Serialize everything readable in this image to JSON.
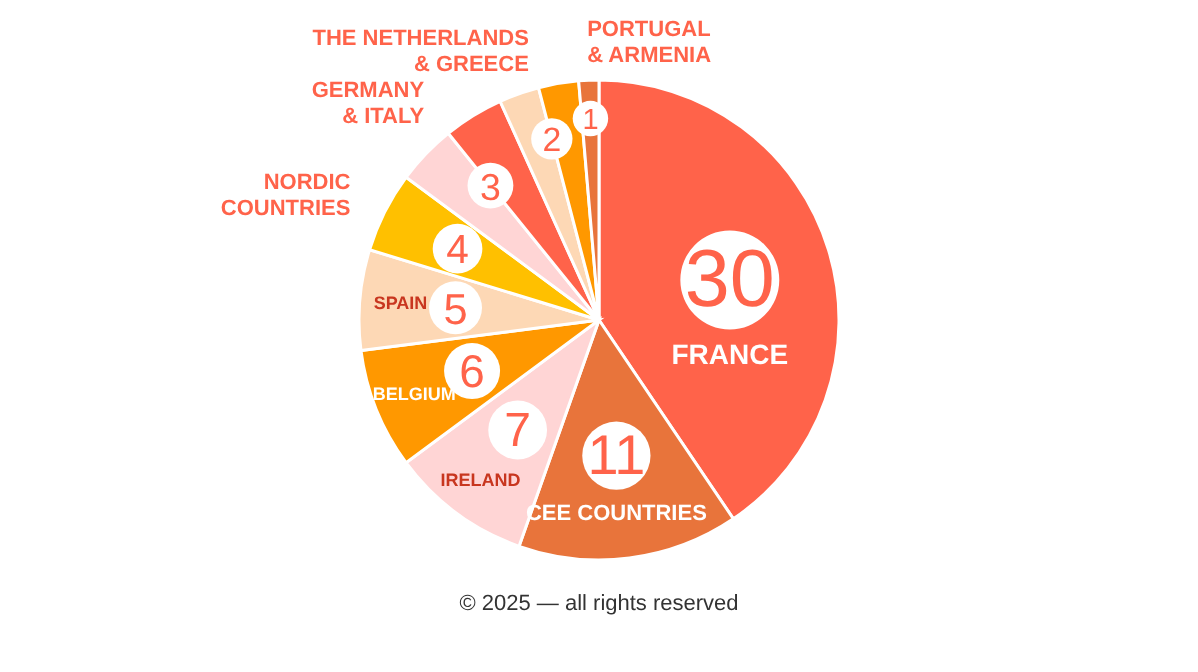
{
  "chart_data": {
    "type": "pie",
    "categories": [
      "FRANCE",
      "CEE COUNTRIES",
      "IRELAND",
      "BELGIUM",
      "SPAIN",
      "NORDIC COUNTRIES",
      "GERMANY & ITALY",
      null,
      "THE NETHERLANDS & GREECE",
      null,
      "PORTUGAL & ARMENIA"
    ],
    "values": [
      30,
      11,
      7,
      6,
      5,
      4,
      3,
      3,
      2,
      2,
      1
    ],
    "value_labels": [
      "30",
      "11",
      "7",
      "6",
      "5",
      "4",
      "3",
      null,
      "2",
      null,
      "1"
    ],
    "colors": [
      "#ff634a",
      "#e8743b",
      "#ffd5d5",
      "#ff9800",
      "#fdd8b5",
      "#ffc000",
      "#ffd5d5",
      "#ff634a",
      "#fdd8b5",
      "#ff9800",
      "#e8743b"
    ],
    "annotations": [
      "© 2025 — all rights reserved"
    ]
  }
}
